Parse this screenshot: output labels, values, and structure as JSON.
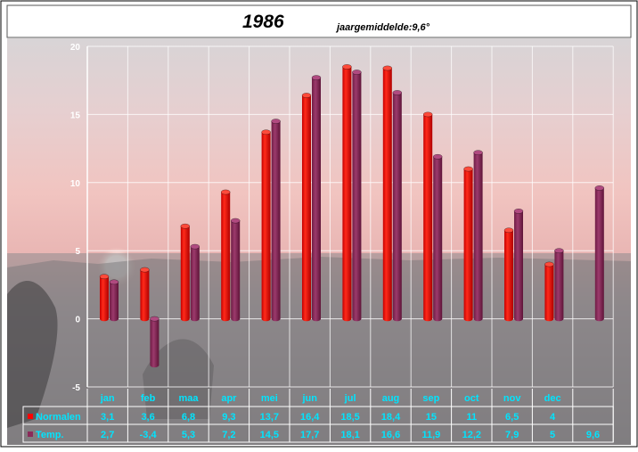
{
  "chart_data": {
    "type": "bar",
    "title": "1986",
    "subtitle": "jaargemiddelde:9,6°",
    "categories": [
      "jan",
      "feb",
      "maa",
      "apr",
      "mei",
      "jun",
      "jul",
      "aug",
      "sep",
      "oct",
      "nov",
      "dec",
      ""
    ],
    "series": [
      {
        "name": "Normalen",
        "color": "#ff0000",
        "values": [
          3.1,
          3.6,
          6.8,
          9.3,
          13.7,
          16.4,
          18.5,
          18.4,
          15,
          11,
          6.5,
          4,
          null
        ],
        "labels": [
          "3,1",
          "3,6",
          "6,8",
          "9,3",
          "13,7",
          "16,4",
          "18,5",
          "18,4",
          "15",
          "11",
          "6,5",
          "4",
          ""
        ]
      },
      {
        "name": "Temp.",
        "color": "#8b2a5a",
        "values": [
          2.7,
          -3.4,
          5.3,
          7.2,
          14.5,
          17.7,
          18.1,
          16.6,
          11.9,
          12.2,
          7.9,
          5,
          9.6
        ],
        "labels": [
          "2,7",
          "-3,4",
          "5,3",
          "7,2",
          "14,5",
          "17,7",
          "18,1",
          "16,6",
          "11,9",
          "12,2",
          "7,9",
          "5",
          "9,6"
        ]
      }
    ],
    "yticks": [
      "20",
      "15",
      "10",
      "5",
      "0",
      "-5"
    ],
    "ylim": [
      -5,
      20
    ],
    "grid": true,
    "legend": "table-below"
  }
}
